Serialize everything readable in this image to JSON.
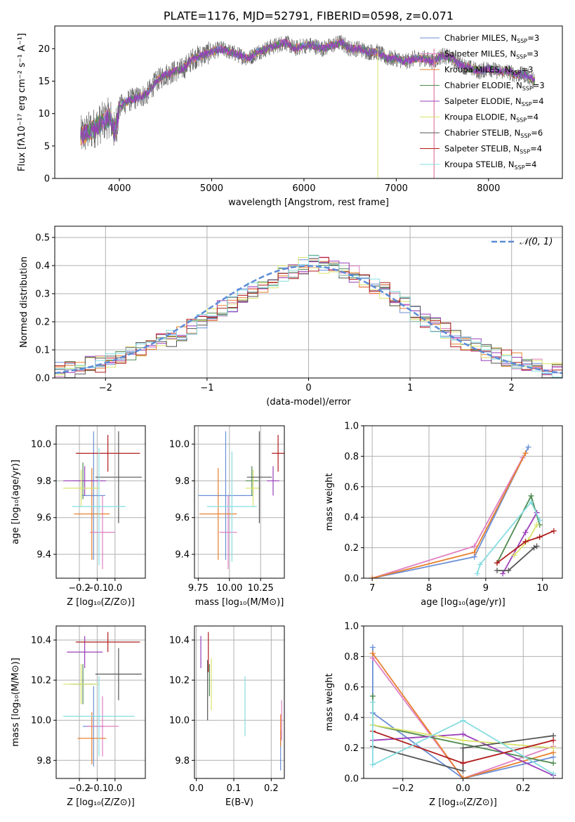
{
  "colors": {
    "series": [
      "#6a8fd6",
      "#e07fc3",
      "#e8802d",
      "#4f8a4f",
      "#9a3fb8",
      "#d9e36b",
      "#555555",
      "#b01c1c",
      "#85dce0"
    ],
    "gaussian": "#5b8bd8",
    "grid": "#b0b0b0"
  },
  "chart_data": [
    {
      "id": "spectrum",
      "type": "line",
      "title": "PLATE=1176, MJD=52791, FIBERID=0598, z=0.071",
      "xlabel": "wavelength [Angstrom, rest frame]",
      "ylabel": "Flux [fλ10⁻¹⁷ erg cm⁻² s⁻¹ A⁻¹]",
      "xlim": [
        3300,
        8800
      ],
      "ylim": [
        0,
        23.5
      ],
      "xticks": [
        4000,
        5000,
        6000,
        7000,
        8000
      ],
      "yticks": [
        0,
        5,
        10,
        15,
        20
      ],
      "legend_position": "upper right",
      "legend": [
        {
          "base": "Chabrier MILES, N",
          "sub": "SSP",
          "tail": "=3"
        },
        {
          "base": "Salpeter MILES, N",
          "sub": "SSP",
          "tail": "=3"
        },
        {
          "base": "Kroupa MILES, N",
          "sub": "SSP",
          "tail": "=3"
        },
        {
          "base": "Chabrier ELODIE, N",
          "sub": "SSP",
          "tail": "=3"
        },
        {
          "base": "Salpeter ELODIE, N",
          "sub": "SSP",
          "tail": "=4"
        },
        {
          "base": "Kroupa ELODIE, N",
          "sub": "SSP",
          "tail": "=4"
        },
        {
          "base": "Chabrier STELIB, N",
          "sub": "SSP",
          "tail": "=6"
        },
        {
          "base": "Salpeter STELIB, N",
          "sub": "SSP",
          "tail": "=4"
        },
        {
          "base": "Kroupa STELIB, N",
          "sub": "SSP",
          "tail": "=4"
        }
      ],
      "x": [
        3580,
        3700,
        3800,
        3900,
        3950,
        4000,
        4100,
        4200,
        4300,
        4400,
        4500,
        4600,
        4700,
        4800,
        4900,
        5000,
        5100,
        5200,
        5300,
        5400,
        5500,
        5600,
        5700,
        5800,
        5900,
        6000,
        6100,
        6200,
        6300,
        6400,
        6500,
        6600,
        6700,
        6800,
        6900,
        7000,
        7100,
        7200,
        7300,
        7400,
        7500,
        7600,
        7700,
        7800,
        7900,
        8000,
        8100,
        8200,
        8300,
        8400,
        8500
      ],
      "y": [
        6.5,
        7.5,
        8.5,
        9.5,
        7.0,
        11.0,
        12.0,
        12.5,
        13.0,
        15.0,
        16.0,
        16.5,
        17.0,
        18.5,
        19.0,
        19.5,
        20.0,
        19.5,
        19.0,
        18.5,
        19.5,
        20.0,
        20.5,
        21.0,
        20.0,
        20.5,
        20.5,
        20.0,
        20.5,
        21.0,
        20.0,
        20.0,
        19.5,
        19.5,
        18.5,
        18.5,
        18.0,
        18.5,
        18.5,
        18.0,
        19.0,
        18.5,
        17.5,
        17.0,
        16.5,
        17.0,
        16.5,
        16.5,
        16.0,
        16.0,
        15.0
      ]
    },
    {
      "id": "residual_hist",
      "type": "line",
      "xlabel": "(data-model)/error",
      "ylabel": "Normed distribution",
      "xlim": [
        -2.5,
        2.5
      ],
      "ylim": [
        0,
        0.54
      ],
      "xticks": [
        -2,
        -1,
        0,
        1,
        2
      ],
      "yticks": [
        0.0,
        0.1,
        0.2,
        0.3,
        0.4,
        0.5
      ],
      "legend": [
        "𝒩(0, 1)"
      ],
      "legend_position": "upper right",
      "bin_width": 0.1,
      "hist_start": -2.5,
      "hist": [
        0.03,
        0.03,
        0.04,
        0.05,
        0.05,
        0.06,
        0.07,
        0.09,
        0.1,
        0.11,
        0.13,
        0.14,
        0.16,
        0.18,
        0.2,
        0.22,
        0.25,
        0.26,
        0.29,
        0.31,
        0.33,
        0.35,
        0.37,
        0.38,
        0.4,
        0.41,
        0.4,
        0.4,
        0.38,
        0.37,
        0.35,
        0.33,
        0.31,
        0.28,
        0.26,
        0.23,
        0.21,
        0.19,
        0.17,
        0.14,
        0.12,
        0.11,
        0.09,
        0.08,
        0.07,
        0.06,
        0.05,
        0.04,
        0.03,
        0.03
      ]
    },
    {
      "id": "age_vs_Z",
      "type": "scatter",
      "xlabel": "Z [log₁₀(Z/Z⊙)]",
      "ylabel": "age  [log₁₀(age/yr)]",
      "xlim": [
        -0.33,
        0.17
      ],
      "ylim": [
        9.27,
        10.1
      ],
      "xticks": [
        -0.2,
        -0.1,
        0.0
      ],
      "yticks": [
        9.4,
        9.6,
        9.8,
        10.0
      ],
      "points": [
        {
          "x": -0.12,
          "y": 9.72,
          "xerr": 0.065,
          "yerr": 0.35
        },
        {
          "x": -0.07,
          "y": 9.52,
          "xerr": 0.07,
          "yerr": 0.2
        },
        {
          "x": -0.13,
          "y": 9.62,
          "xerr": 0.1,
          "yerr": 0.25
        },
        {
          "x": -0.18,
          "y": 9.8,
          "xerr": 0.06,
          "yerr": 0.1
        },
        {
          "x": -0.17,
          "y": 9.8,
          "xerr": 0.12,
          "yerr": 0.08
        },
        {
          "x": -0.19,
          "y": 9.76,
          "xerr": 0.1,
          "yerr": 0.1
        },
        {
          "x": 0.02,
          "y": 9.82,
          "xerr": 0.13,
          "yerr": 0.25
        },
        {
          "x": -0.04,
          "y": 9.95,
          "xerr": 0.18,
          "yerr": 0.1
        },
        {
          "x": -0.09,
          "y": 9.66,
          "xerr": 0.15,
          "yerr": 0.32
        }
      ]
    },
    {
      "id": "age_vs_mass",
      "type": "scatter",
      "xlabel": "mass [log₁₀(M/M⊙)]",
      "ylabel": "",
      "xlim": [
        9.72,
        10.44
      ],
      "ylim": [
        9.27,
        10.1
      ],
      "xticks": [
        9.75,
        10.0,
        10.25
      ],
      "yticks": [
        9.4,
        9.6,
        9.8,
        10.0
      ],
      "points": [
        {
          "x": 9.97,
          "y": 9.72,
          "xerr": 0.22,
          "yerr": 0.35
        },
        {
          "x": 9.99,
          "y": 9.52,
          "xerr": 0.07,
          "yerr": 0.2
        },
        {
          "x": 9.91,
          "y": 9.62,
          "xerr": 0.15,
          "yerr": 0.25
        },
        {
          "x": 10.18,
          "y": 9.8,
          "xerr": 0.05,
          "yerr": 0.08
        },
        {
          "x": 10.35,
          "y": 9.8,
          "xerr": 0.05,
          "yerr": 0.08
        },
        {
          "x": 10.19,
          "y": 9.76,
          "xerr": 0.06,
          "yerr": 0.1
        },
        {
          "x": 10.24,
          "y": 9.82,
          "xerr": 0.1,
          "yerr": 0.25
        },
        {
          "x": 10.39,
          "y": 9.95,
          "xerr": 0.05,
          "yerr": 0.1
        },
        {
          "x": 10.02,
          "y": 9.66,
          "xerr": 0.2,
          "yerr": 0.3
        }
      ]
    },
    {
      "id": "mass_weight_vs_age",
      "type": "line",
      "xlabel": "age  [log₁₀(age/yr)]",
      "ylabel": "mass weight",
      "xlim": [
        6.85,
        10.35
      ],
      "ylim": [
        0,
        1.0
      ],
      "xticks": [
        7,
        8,
        9,
        10
      ],
      "yticks": [
        0.0,
        0.2,
        0.4,
        0.6,
        0.8,
        1.0
      ],
      "series": [
        {
          "x": [
            7.0,
            8.8,
            9.75
          ],
          "y": [
            0.0,
            0.14,
            0.86
          ]
        },
        {
          "x": [
            7.0,
            8.8,
            9.65
          ],
          "y": [
            0.0,
            0.21,
            0.79
          ]
        },
        {
          "x": [
            7.0,
            8.8,
            9.7
          ],
          "y": [
            0.0,
            0.17,
            0.82
          ]
        },
        {
          "x": [
            9.2,
            9.8,
            9.95
          ],
          "y": [
            0.1,
            0.54,
            0.35
          ]
        },
        {
          "x": [
            9.3,
            9.7,
            9.9
          ],
          "y": [
            0.03,
            0.3,
            0.43
          ]
        },
        {
          "x": [
            9.5,
            9.75,
            9.9
          ],
          "y": [
            0.15,
            0.25,
            0.35
          ]
        },
        {
          "x": [
            9.2,
            9.4,
            9.85,
            9.9
          ],
          "y": [
            0.05,
            0.05,
            0.2,
            0.21
          ]
        },
        {
          "x": [
            9.2,
            9.7,
            9.95,
            10.2
          ],
          "y": [
            0.1,
            0.24,
            0.27,
            0.31
          ]
        },
        {
          "x": [
            8.85,
            8.9,
            9.8,
            9.95
          ],
          "y": [
            0.03,
            0.09,
            0.5,
            0.38
          ]
        }
      ]
    },
    {
      "id": "mass_vs_Z",
      "type": "scatter",
      "xlabel": "Z [log₁₀(Z/Z⊙)]",
      "ylabel": "mass [log₁₀(M/M⊙)]",
      "xlim": [
        -0.33,
        0.17
      ],
      "ylim": [
        9.71,
        10.47
      ],
      "xticks": [
        -0.2,
        -0.1,
        0.0
      ],
      "yticks": [
        9.8,
        10.0,
        10.2,
        10.4
      ],
      "points": [
        {
          "x": -0.12,
          "y": 9.97,
          "xerr": 0.06,
          "yerr": 0.2
        },
        {
          "x": -0.07,
          "y": 9.97,
          "xerr": 0.09,
          "yerr": 0.15
        },
        {
          "x": -0.13,
          "y": 9.91,
          "xerr": 0.08,
          "yerr": 0.13
        },
        {
          "x": -0.18,
          "y": 10.18,
          "xerr": 0.07,
          "yerr": 0.1
        },
        {
          "x": -0.17,
          "y": 10.34,
          "xerr": 0.1,
          "yerr": 0.08
        },
        {
          "x": -0.19,
          "y": 10.18,
          "xerr": 0.1,
          "yerr": 0.1
        },
        {
          "x": 0.02,
          "y": 10.23,
          "xerr": 0.13,
          "yerr": 0.13
        },
        {
          "x": -0.04,
          "y": 10.39,
          "xerr": 0.18,
          "yerr": 0.05
        },
        {
          "x": -0.09,
          "y": 10.02,
          "xerr": 0.2,
          "yerr": 0.2
        }
      ]
    },
    {
      "id": "mass_vs_EBV",
      "type": "scatter",
      "xlabel": "E(B-V)",
      "ylabel": "",
      "xlim": [
        -0.005,
        0.235
      ],
      "ylim": [
        9.71,
        10.47
      ],
      "xticks": [
        0.0,
        0.1,
        0.2
      ],
      "yticks": [
        9.8,
        10.0,
        10.2,
        10.4
      ],
      "points": [
        {
          "x": 0.225,
          "y": 9.85,
          "yerr": 0.1
        },
        {
          "x": 0.228,
          "y": 10.0,
          "yerr": 0.1
        },
        {
          "x": 0.225,
          "y": 9.95,
          "yerr": 0.08
        },
        {
          "x": 0.035,
          "y": 10.2,
          "yerr": 0.08
        },
        {
          "x": 0.012,
          "y": 10.34,
          "yerr": 0.08
        },
        {
          "x": 0.04,
          "y": 10.18,
          "yerr": 0.13
        },
        {
          "x": 0.03,
          "y": 10.15,
          "yerr": 0.15
        },
        {
          "x": 0.032,
          "y": 10.34,
          "yerr": 0.1
        },
        {
          "x": 0.13,
          "y": 10.07,
          "yerr": 0.15
        }
      ]
    },
    {
      "id": "mass_weight_vs_Z",
      "type": "line",
      "xlabel": "Z [log₁₀(Z/Z⊙)]",
      "ylabel": "mass weight",
      "xlim": [
        -0.33,
        0.33
      ],
      "ylim": [
        0,
        1.0
      ],
      "xticks": [
        -0.2,
        0.0,
        0.2
      ],
      "yticks": [
        0.0,
        0.2,
        0.4,
        0.6,
        0.8,
        1.0
      ],
      "series": [
        {
          "x": [
            -0.3,
            -0.3,
            0.0,
            0.3
          ],
          "y": [
            0.86,
            0.43,
            0.0,
            0.14
          ]
        },
        {
          "x": [
            -0.3,
            0.0,
            0.3
          ],
          "y": [
            0.79,
            0.0,
            0.21
          ]
        },
        {
          "x": [
            -0.3,
            0.0,
            0.3
          ],
          "y": [
            0.82,
            0.0,
            0.17
          ]
        },
        {
          "x": [
            -0.3,
            -0.3,
            0.3
          ],
          "y": [
            0.54,
            0.35,
            0.1
          ]
        },
        {
          "x": [
            -0.3,
            0.0,
            0.3
          ],
          "y": [
            0.25,
            0.29,
            0.02
          ]
        },
        {
          "x": [
            -0.3,
            0.0,
            0.3
          ],
          "y": [
            0.35,
            0.25,
            0.2
          ]
        },
        {
          "x": [
            -0.3,
            0.0,
            0.0,
            0.3
          ],
          "y": [
            0.21,
            0.05,
            0.2,
            0.28
          ]
        },
        {
          "x": [
            -0.3,
            0.0,
            0.3
          ],
          "y": [
            0.31,
            0.1,
            0.25
          ]
        },
        {
          "x": [
            -0.3,
            -0.3,
            0.0,
            0.3
          ],
          "y": [
            0.5,
            0.09,
            0.38,
            0.03
          ]
        }
      ]
    }
  ]
}
